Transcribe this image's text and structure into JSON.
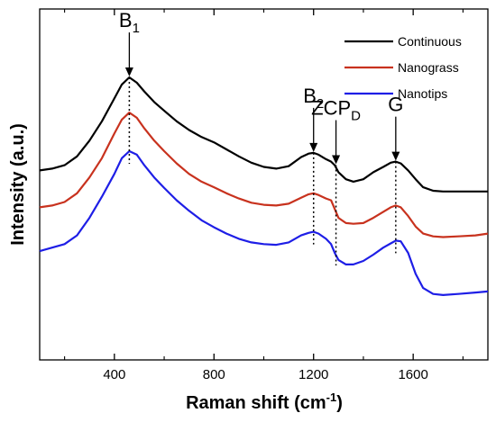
{
  "chart_data": {
    "type": "line",
    "xlabel": "Raman shift (cm",
    "xlabel_sup": "-1",
    "xlabel_end": ")",
    "ylabel": "Intensity (a.u.)",
    "xlim": [
      100,
      1900
    ],
    "ylim": [
      0,
      10
    ],
    "xticks": [
      400,
      800,
      1200,
      1600
    ],
    "xticks_minor": [
      200,
      600,
      1000,
      1400,
      1800
    ],
    "yticks_shown": false,
    "grid": false,
    "legend_position": "top-right",
    "series": [
      {
        "name": "Continuous",
        "color": "#000000",
        "x": [
          100,
          150,
          200,
          250,
          300,
          350,
          400,
          430,
          460,
          490,
          520,
          560,
          600,
          650,
          700,
          750,
          800,
          850,
          900,
          950,
          1000,
          1050,
          1100,
          1150,
          1180,
          1200,
          1220,
          1250,
          1270,
          1285,
          1300,
          1330,
          1360,
          1400,
          1440,
          1480,
          1510,
          1530,
          1550,
          1580,
          1610,
          1640,
          1680,
          1720,
          1780,
          1850,
          1900
        ],
        "y": [
          5.4,
          5.45,
          5.55,
          5.8,
          6.25,
          6.8,
          7.45,
          7.85,
          8.05,
          7.9,
          7.65,
          7.35,
          7.1,
          6.8,
          6.55,
          6.35,
          6.2,
          6.0,
          5.8,
          5.62,
          5.5,
          5.45,
          5.52,
          5.78,
          5.88,
          5.9,
          5.85,
          5.72,
          5.65,
          5.55,
          5.35,
          5.15,
          5.08,
          5.15,
          5.35,
          5.5,
          5.62,
          5.65,
          5.6,
          5.4,
          5.15,
          4.92,
          4.82,
          4.8,
          4.8,
          4.8,
          4.8
        ]
      },
      {
        "name": "Nanograss",
        "color": "#c8321e",
        "x": [
          100,
          150,
          200,
          250,
          300,
          350,
          400,
          430,
          460,
          490,
          520,
          560,
          600,
          650,
          700,
          750,
          800,
          850,
          900,
          950,
          1000,
          1050,
          1100,
          1150,
          1180,
          1200,
          1220,
          1250,
          1270,
          1285,
          1300,
          1330,
          1360,
          1400,
          1440,
          1480,
          1510,
          1530,
          1550,
          1580,
          1610,
          1640,
          1680,
          1720,
          1780,
          1850,
          1900
        ],
        "y": [
          4.35,
          4.4,
          4.5,
          4.75,
          5.2,
          5.75,
          6.45,
          6.85,
          7.05,
          6.9,
          6.6,
          6.25,
          5.95,
          5.6,
          5.3,
          5.08,
          4.92,
          4.75,
          4.6,
          4.48,
          4.42,
          4.4,
          4.45,
          4.62,
          4.72,
          4.75,
          4.7,
          4.6,
          4.55,
          4.3,
          4.05,
          3.9,
          3.88,
          3.9,
          4.05,
          4.22,
          4.35,
          4.4,
          4.35,
          4.1,
          3.8,
          3.6,
          3.52,
          3.5,
          3.52,
          3.55,
          3.6
        ]
      },
      {
        "name": "Nanotips",
        "color": "#1e1ee6",
        "x": [
          100,
          150,
          200,
          250,
          300,
          350,
          400,
          430,
          460,
          490,
          520,
          560,
          600,
          650,
          700,
          750,
          800,
          850,
          900,
          950,
          1000,
          1050,
          1100,
          1150,
          1180,
          1200,
          1220,
          1250,
          1270,
          1285,
          1300,
          1330,
          1360,
          1400,
          1440,
          1480,
          1510,
          1530,
          1550,
          1580,
          1610,
          1640,
          1680,
          1720,
          1780,
          1850,
          1900
        ],
        "y": [
          3.1,
          3.2,
          3.3,
          3.55,
          4.05,
          4.65,
          5.3,
          5.75,
          5.95,
          5.85,
          5.55,
          5.2,
          4.9,
          4.55,
          4.25,
          3.98,
          3.78,
          3.6,
          3.45,
          3.35,
          3.3,
          3.28,
          3.35,
          3.55,
          3.62,
          3.65,
          3.6,
          3.45,
          3.3,
          3.05,
          2.85,
          2.72,
          2.72,
          2.82,
          3.0,
          3.2,
          3.32,
          3.4,
          3.38,
          3.05,
          2.45,
          2.05,
          1.88,
          1.85,
          1.88,
          1.92,
          1.95
        ]
      }
    ],
    "annotations": [
      {
        "label": "B",
        "sub": "1",
        "x": 460,
        "peak_y": 8.05
      },
      {
        "label": "B",
        "sub": "2",
        "x": 1200,
        "peak_y": 5.9
      },
      {
        "label": "ZCP",
        "sub": "D",
        "x": 1290,
        "peak_y": 5.55
      },
      {
        "label": "G",
        "sub": "",
        "x": 1530,
        "peak_y": 5.65
      }
    ]
  }
}
